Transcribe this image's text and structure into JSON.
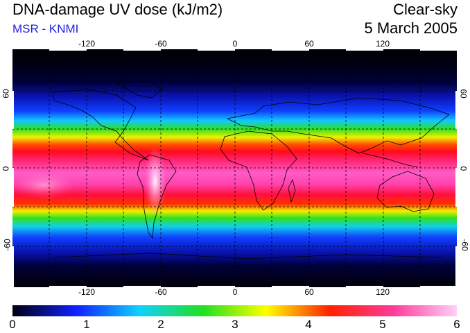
{
  "header": {
    "title": "DNA-damage UV dose (kJ/m2)",
    "subtitle": "MSR - KNMI",
    "condition": "Clear-sky",
    "date": "5 March 2005"
  },
  "map": {
    "projection": "equirectangular",
    "grid_style": "dashed",
    "lon_ticks": [
      -120,
      -60,
      0,
      60,
      120
    ],
    "lat_ticks": [
      60,
      0,
      -60
    ],
    "lon_tick_labels": [
      "-120",
      "-60",
      "0",
      "60",
      "120"
    ],
    "lat_tick_labels": [
      "60",
      "0",
      "-60"
    ],
    "lon_range": [
      -180,
      180
    ],
    "lat_range": [
      -90,
      90
    ]
  },
  "colorbar": {
    "min": 0,
    "max": 6,
    "labels": [
      "0",
      "1",
      "2",
      "3",
      "4",
      "5",
      "6"
    ],
    "colors": [
      "#000010",
      "#1020ff",
      "#10d0ff",
      "#20e020",
      "#ffff00",
      "#ff2000",
      "#ff3c9a",
      "#ffd0f8"
    ]
  },
  "chart_data": {
    "type": "heatmap",
    "title": "DNA-damage UV dose (kJ/m2)",
    "xlabel": "",
    "ylabel": "",
    "xlim": [
      -180,
      180
    ],
    "ylim": [
      -90,
      90
    ],
    "zlim": [
      0,
      6
    ],
    "latitudinal_profile": {
      "lat": [
        90,
        70,
        60,
        50,
        40,
        30,
        25,
        20,
        15,
        10,
        5,
        0,
        -5,
        -10,
        -15,
        -20,
        -25,
        -30,
        -35,
        -40,
        -50,
        -60,
        -70,
        -90
      ],
      "dose": [
        0.0,
        0.1,
        0.4,
        1.0,
        1.7,
        2.5,
        3.3,
        4.1,
        4.7,
        5.3,
        5.6,
        5.6,
        5.6,
        5.4,
        5.1,
        4.6,
        4.1,
        3.4,
        2.7,
        2.1,
        1.4,
        0.6,
        0.2,
        0.0
      ]
    }
  }
}
